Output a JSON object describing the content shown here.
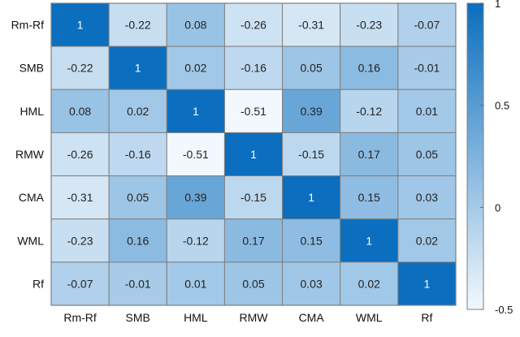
{
  "chart_data": {
    "type": "heatmap",
    "title": "",
    "xlabel": "",
    "ylabel": "",
    "categories": [
      "Rm-Rf",
      "SMB",
      "HML",
      "RMW",
      "CMA",
      "WML",
      "Rf"
    ],
    "x": [
      "Rm-Rf",
      "SMB",
      "HML",
      "RMW",
      "CMA",
      "WML",
      "Rf"
    ],
    "y": [
      "Rm-Rf",
      "SMB",
      "HML",
      "RMW",
      "CMA",
      "WML",
      "Rf"
    ],
    "values": [
      [
        1,
        -0.22,
        0.08,
        -0.26,
        -0.31,
        -0.23,
        -0.07
      ],
      [
        -0.22,
        1,
        0.02,
        -0.16,
        0.05,
        0.16,
        -0.01
      ],
      [
        0.08,
        0.02,
        1,
        -0.51,
        0.39,
        -0.12,
        0.01
      ],
      [
        -0.26,
        -0.16,
        -0.51,
        1,
        -0.15,
        0.17,
        0.05
      ],
      [
        -0.31,
        0.05,
        0.39,
        -0.15,
        1,
        0.15,
        0.03
      ],
      [
        -0.23,
        0.16,
        -0.12,
        0.17,
        0.15,
        1,
        0.02
      ],
      [
        -0.07,
        -0.01,
        0.01,
        0.05,
        0.03,
        0.02,
        1
      ]
    ],
    "colorbar": {
      "range": [
        -0.5,
        1
      ],
      "ticks": [
        1,
        0.5,
        0,
        -0.5
      ],
      "colors": {
        "low": "#F2F8FD",
        "high": "#0B6EBE"
      }
    },
    "grid": true,
    "legend": "right"
  }
}
